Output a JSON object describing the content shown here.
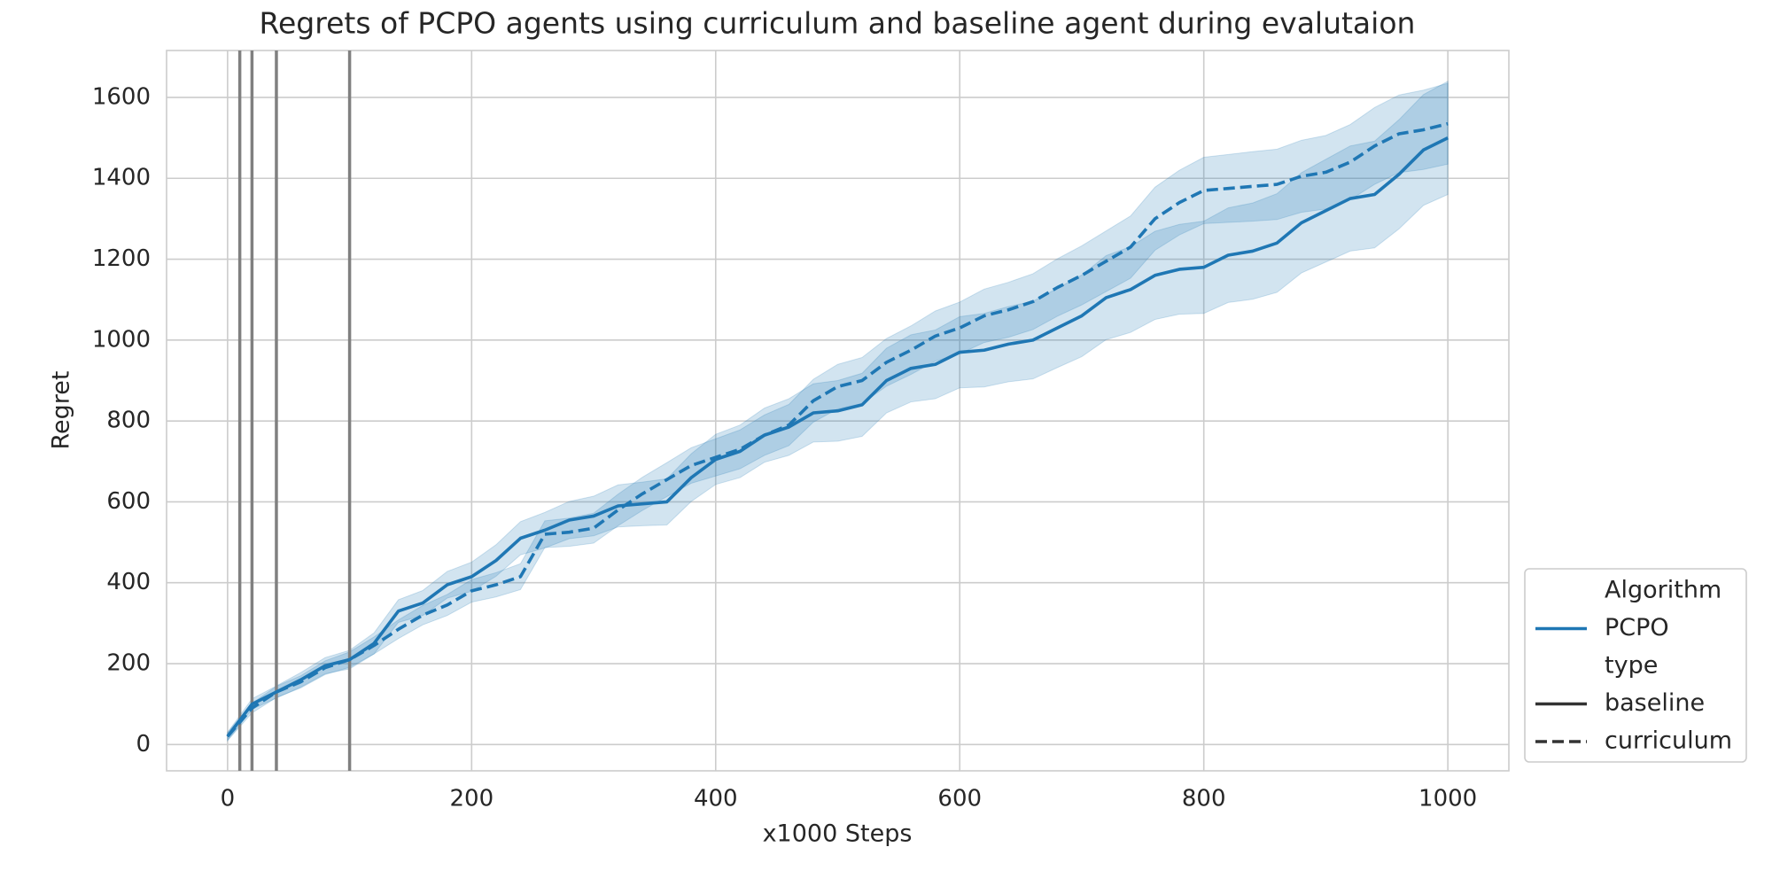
{
  "chart_data": {
    "type": "line",
    "title": "Regrets of PCPO agents using curriculum and baseline agent during evalutaion",
    "xlabel": "x1000 Steps",
    "ylabel": "Regret",
    "x": [
      0,
      20,
      40,
      60,
      80,
      100,
      120,
      140,
      160,
      180,
      200,
      220,
      240,
      260,
      280,
      300,
      320,
      340,
      360,
      380,
      400,
      420,
      440,
      460,
      480,
      500,
      520,
      540,
      560,
      580,
      600,
      620,
      640,
      660,
      680,
      700,
      720,
      740,
      760,
      780,
      800,
      820,
      840,
      860,
      880,
      900,
      920,
      940,
      960,
      980,
      1000
    ],
    "series": [
      {
        "name": "baseline",
        "color": "#1f77b4",
        "dashed": false,
        "values": [
          20,
          100,
          130,
          160,
          195,
          210,
          250,
          330,
          350,
          395,
          415,
          455,
          510,
          530,
          555,
          565,
          590,
          595,
          600,
          660,
          705,
          725,
          765,
          785,
          820,
          825,
          840,
          900,
          930,
          940,
          970,
          975,
          990,
          1000,
          1030,
          1060,
          1105,
          1125,
          1160,
          1175,
          1180,
          1210,
          1220,
          1240,
          1290,
          1320,
          1350,
          1360,
          1410,
          1470,
          1500
        ],
        "lower": [
          10,
          87,
          115,
          142,
          175,
          187,
          224,
          302,
          319,
          362,
          379,
          416,
          469,
          486,
          509,
          516,
          538,
          541,
          543,
          601,
          643,
          660,
          698,
          715,
          748,
          750,
          762,
          820,
          847,
          855,
          882,
          884,
          897,
          904,
          932,
          959,
          1001,
          1019,
          1051,
          1064,
          1066,
          1093,
          1101,
          1118,
          1166,
          1193,
          1220,
          1228,
          1275,
          1333,
          1360
        ],
        "upper": [
          30,
          113,
          145,
          178,
          215,
          233,
          276,
          358,
          381,
          428,
          451,
          494,
          551,
          574,
          601,
          614,
          642,
          649,
          657,
          719,
          767,
          790,
          832,
          855,
          892,
          900,
          918,
          980,
          1013,
          1025,
          1058,
          1066,
          1083,
          1096,
          1128,
          1161,
          1209,
          1231,
          1269,
          1286,
          1294,
          1327,
          1339,
          1362,
          1414,
          1447,
          1480,
          1492,
          1545,
          1607,
          1640
        ]
      },
      {
        "name": "curriculum",
        "color": "#1f77b4",
        "dashed": true,
        "values": [
          20,
          90,
          130,
          155,
          190,
          210,
          245,
          285,
          320,
          345,
          380,
          395,
          415,
          520,
          525,
          535,
          580,
          620,
          655,
          690,
          710,
          730,
          765,
          790,
          850,
          885,
          900,
          945,
          975,
          1010,
          1030,
          1060,
          1075,
          1095,
          1130,
          1160,
          1195,
          1230,
          1300,
          1340,
          1370,
          1375,
          1380,
          1385,
          1405,
          1415,
          1440,
          1480,
          1510,
          1520,
          1535
        ],
        "lower": [
          10,
          78,
          116,
          140,
          173,
          191,
          224,
          262,
          296,
          319,
          352,
          365,
          383,
          487,
          490,
          498,
          541,
          579,
          613,
          646,
          664,
          682,
          715,
          739,
          797,
          830,
          843,
          886,
          915,
          948,
          966,
          994,
          1007,
          1026,
          1059,
          1087,
          1120,
          1153,
          1222,
          1260,
          1288,
          1291,
          1294,
          1298,
          1316,
          1324,
          1347,
          1385,
          1414,
          1422,
          1435
        ],
        "upper": [
          30,
          102,
          144,
          170,
          207,
          229,
          266,
          308,
          344,
          371,
          408,
          425,
          447,
          553,
          560,
          572,
          619,
          661,
          697,
          734,
          756,
          778,
          815,
          841,
          903,
          940,
          957,
          1004,
          1035,
          1072,
          1094,
          1126,
          1143,
          1164,
          1201,
          1233,
          1270,
          1307,
          1378,
          1420,
          1452,
          1459,
          1466,
          1472,
          1494,
          1506,
          1533,
          1575,
          1606,
          1618,
          1635
        ]
      }
    ],
    "band_opacity": 0.2,
    "vlines": [
      10,
      20,
      40,
      100
    ],
    "vline_color": "#808080",
    "xlim": [
      -50,
      1050
    ],
    "ylim": [
      -65,
      1716
    ],
    "xticks": [
      0,
      200,
      400,
      600,
      800,
      1000
    ],
    "yticks": [
      0,
      200,
      400,
      600,
      800,
      1000,
      1200,
      1400,
      1600
    ],
    "grid": true,
    "legend": {
      "position": "lower right outside",
      "hue_title": "Algorithm",
      "hue_label": "PCPO",
      "style_title": "type"
    }
  }
}
